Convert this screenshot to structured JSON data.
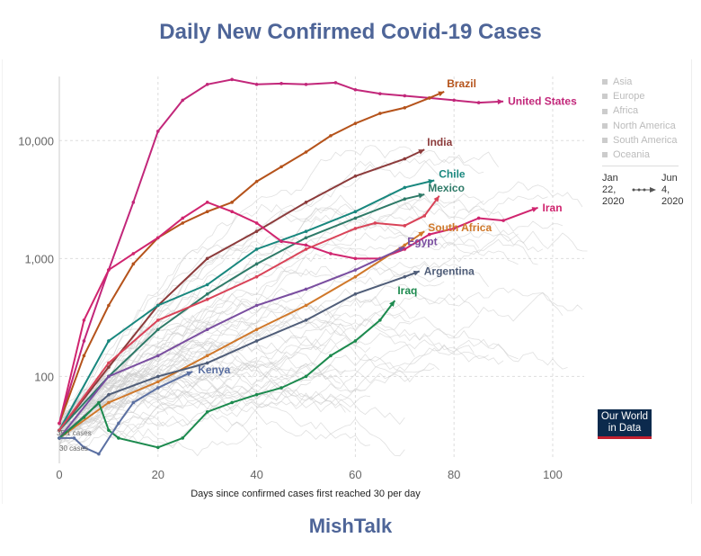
{
  "title": "Daily New Confirmed Covid-19 Cases",
  "footer": "MishTalk",
  "legend": {
    "items": [
      "Asia",
      "Europe",
      "Africa",
      "North America",
      "South America",
      "Oceania"
    ],
    "start": [
      "Jan",
      "22,",
      "2020"
    ],
    "end": [
      "Jun",
      "4,",
      "2020"
    ]
  },
  "logo": [
    "Our World",
    "in Data"
  ],
  "annotations": [
    "35.1 cases",
    "30 cases"
  ],
  "chart_data": {
    "type": "line",
    "title": "Daily New Confirmed Covid-19 Cases",
    "xlabel": "Days since confirmed cases first reached 30 per day",
    "ylabel": "",
    "xlim": [
      0,
      105
    ],
    "ylim": [
      20,
      35000
    ],
    "yscale": "log",
    "xticks": [
      "0",
      "20",
      "40",
      "60",
      "80",
      "100"
    ],
    "yticks": [
      "100",
      "1,000",
      "10,000"
    ],
    "grid": true,
    "series": [
      {
        "name": "United States",
        "color": "#c2277a",
        "x": [
          0,
          5,
          10,
          15,
          20,
          25,
          30,
          35,
          40,
          45,
          50,
          56,
          60,
          65,
          70,
          75,
          80,
          85,
          90
        ],
        "y": [
          40,
          200,
          800,
          3000,
          12000,
          22000,
          30000,
          33000,
          30000,
          30500,
          30000,
          31000,
          27000,
          25000,
          24000,
          23000,
          22000,
          21000,
          21500
        ]
      },
      {
        "name": "Brazil",
        "color": "#b5531b",
        "x": [
          0,
          5,
          10,
          15,
          20,
          25,
          30,
          35,
          40,
          45,
          50,
          55,
          60,
          65,
          70,
          75,
          78
        ],
        "y": [
          40,
          150,
          400,
          900,
          1500,
          2000,
          2500,
          3000,
          4500,
          6000,
          8000,
          11000,
          14000,
          17000,
          19000,
          23000,
          26000
        ]
      },
      {
        "name": "India",
        "color": "#8c3b3b",
        "x": [
          0,
          10,
          20,
          30,
          40,
          50,
          60,
          70,
          74
        ],
        "y": [
          35,
          120,
          400,
          1000,
          1700,
          3000,
          5000,
          7000,
          8400
        ]
      },
      {
        "name": "Chile",
        "color": "#18877e",
        "x": [
          0,
          10,
          20,
          30,
          40,
          50,
          60,
          70,
          76
        ],
        "y": [
          35,
          200,
          400,
          600,
          1200,
          1700,
          2500,
          4000,
          4600
        ]
      },
      {
        "name": "Mexico",
        "color": "#2e7a68",
        "x": [
          0,
          10,
          20,
          30,
          40,
          50,
          60,
          70,
          74
        ],
        "y": [
          35,
          100,
          250,
          500,
          900,
          1500,
          2200,
          3200,
          3500
        ]
      },
      {
        "name": "Iran",
        "color": "#d0256f",
        "x": [
          0,
          5,
          10,
          15,
          20,
          25,
          30,
          35,
          40,
          45,
          50,
          55,
          60,
          65,
          70,
          75,
          80,
          85,
          90,
          97
        ],
        "y": [
          40,
          300,
          800,
          1100,
          1500,
          2200,
          3000,
          2500,
          2000,
          1400,
          1300,
          1100,
          1000,
          1000,
          1200,
          1600,
          1800,
          2200,
          2100,
          2700
        ]
      },
      {
        "name": "",
        "color": "#d94358",
        "x": [
          0,
          10,
          20,
          30,
          40,
          50,
          60,
          64,
          70,
          74,
          77
        ],
        "y": [
          35,
          130,
          300,
          450,
          700,
          1200,
          1800,
          2000,
          1900,
          2300,
          3400
        ]
      },
      {
        "name": "South Africa",
        "color": "#d0782a",
        "x": [
          0,
          10,
          20,
          30,
          40,
          50,
          60,
          70,
          74
        ],
        "y": [
          30,
          60,
          90,
          150,
          250,
          400,
          700,
          1300,
          1700
        ]
      },
      {
        "name": "Egypt",
        "color": "#7a4ea0",
        "x": [
          0,
          10,
          20,
          30,
          40,
          50,
          60,
          70
        ],
        "y": [
          30,
          100,
          150,
          250,
          400,
          550,
          800,
          1250
        ]
      },
      {
        "name": "Argentina",
        "color": "#4f5d78",
        "x": [
          0,
          10,
          20,
          30,
          40,
          50,
          60,
          70,
          73
        ],
        "y": [
          30,
          70,
          100,
          130,
          200,
          300,
          500,
          700,
          780
        ]
      },
      {
        "name": "Iraq",
        "color": "#1c8a4e",
        "x": [
          0,
          5,
          8,
          10,
          12,
          20,
          25,
          30,
          35,
          40,
          45,
          50,
          55,
          60,
          65,
          68
        ],
        "y": [
          30,
          45,
          60,
          35,
          30,
          25,
          30,
          50,
          60,
          70,
          80,
          100,
          150,
          200,
          300,
          440
        ]
      },
      {
        "name": "Kenya",
        "color": "#5b70a2",
        "x": [
          0,
          3,
          5,
          8,
          12,
          15,
          20,
          27
        ],
        "y": [
          30,
          30,
          25,
          22,
          40,
          60,
          80,
          110
        ]
      }
    ]
  }
}
